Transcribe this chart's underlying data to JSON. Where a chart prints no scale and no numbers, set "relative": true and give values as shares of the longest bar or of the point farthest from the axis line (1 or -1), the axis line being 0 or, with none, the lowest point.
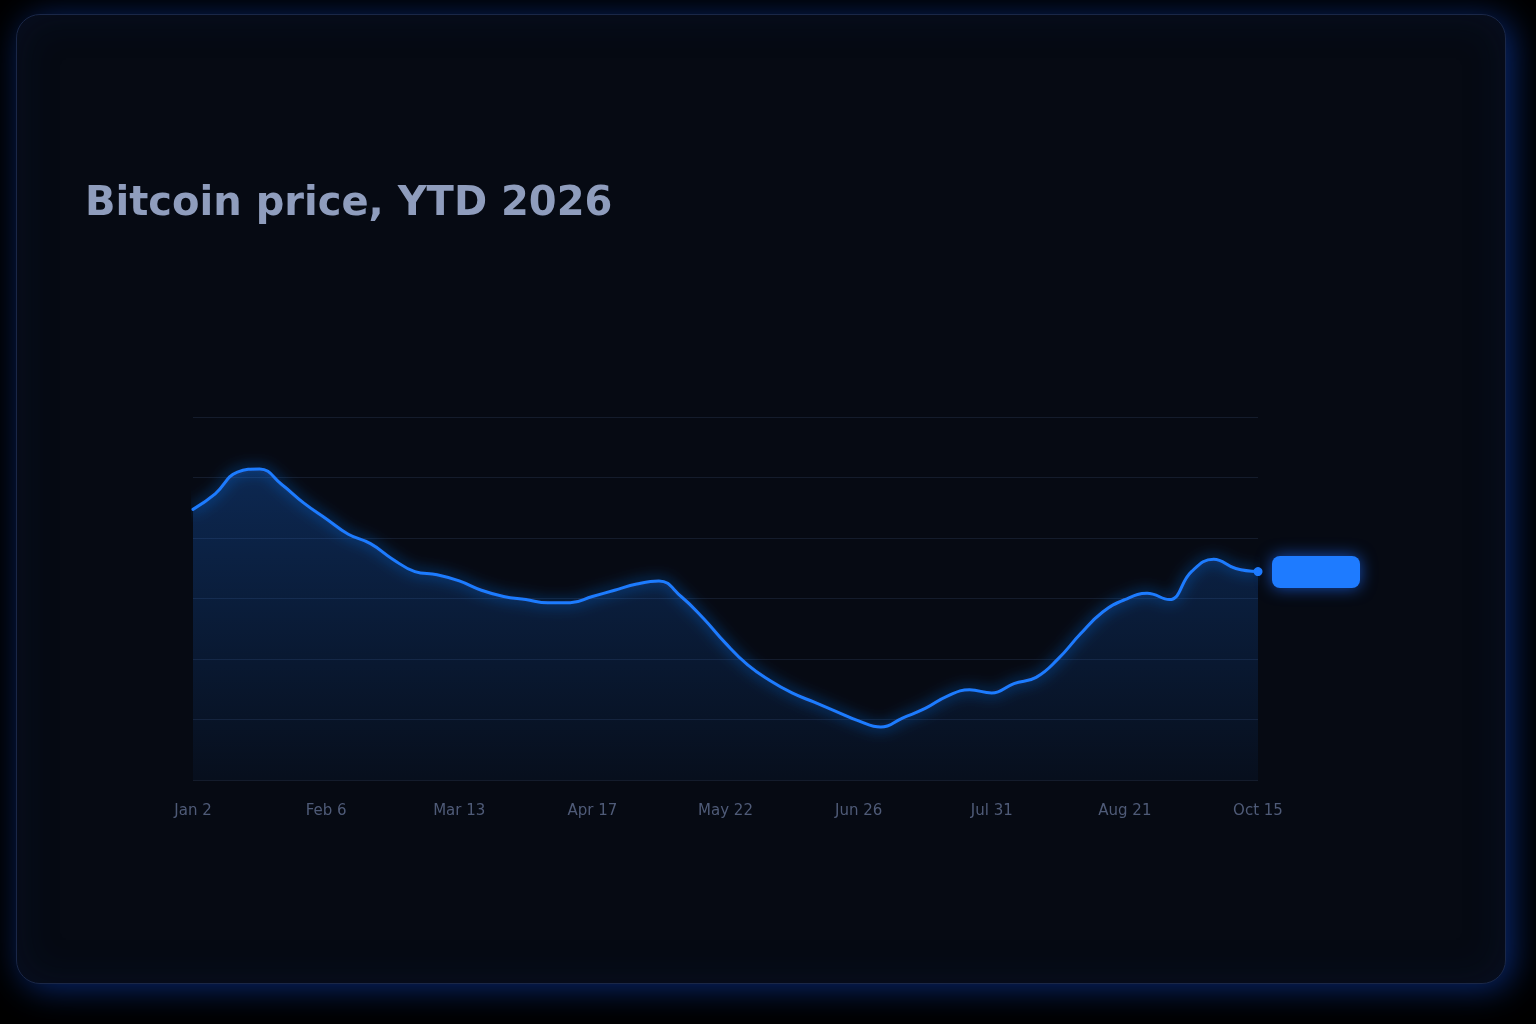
{
  "chart_data": {
    "type": "area",
    "title": "Bitcoin price, YTD 2026",
    "categories": [
      "Jan 2",
      null,
      null,
      null,
      null,
      null,
      "Feb 6",
      null,
      null,
      null,
      null,
      null,
      "Mar 13",
      null,
      null,
      null,
      null,
      null,
      "Apr 17",
      null,
      null,
      null,
      null,
      null,
      "May 22",
      null,
      null,
      null,
      null,
      null,
      "Jun 26",
      null,
      null,
      null,
      null,
      null,
      "Jul 31",
      null,
      null,
      null,
      null,
      null,
      "Aug 21",
      null,
      null,
      null,
      null,
      null,
      "Oct 15"
    ],
    "series": [
      {
        "color": "#1e7bff",
        "values": [
          0.87,
          0.92,
          0.99,
          1,
          0.95,
          0.89,
          0.84,
          0.79,
          0.76,
          0.71,
          0.67,
          0.66,
          0.64,
          0.61,
          0.59,
          0.58,
          0.57,
          0.57,
          0.59,
          0.61,
          0.63,
          0.64,
          0.59,
          0.52,
          0.44,
          0.37,
          0.32,
          0.28,
          0.25,
          0.22,
          0.19,
          0.17,
          0.2,
          0.23,
          0.27,
          0.29,
          0.28,
          0.31,
          0.33,
          0.39,
          0.47,
          0.54,
          0.58,
          0.6,
          0.58,
          0.67,
          0.71,
          0.68,
          0.67
        ]
      }
    ],
    "relative": true,
    "grid": "y"
  }
}
